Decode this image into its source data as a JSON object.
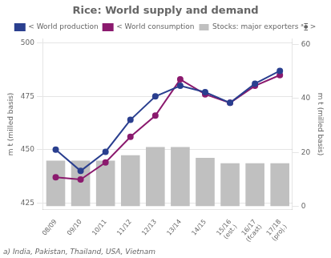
{
  "chart_data": {
    "type": "bar",
    "title": "Rice: World supply and demand",
    "annotations": [
      "a) India, Pakistan, Thailand, USA, Vietnam"
    ],
    "categories": [
      "08/09",
      "09/10",
      "10/11",
      "11/12",
      "12/13",
      "13/14",
      "14/15",
      "15/16\n(est.)",
      "16/17\n(fcast)",
      "17/18\n(proj.)"
    ],
    "series": [
      {
        "name": "Stocks: major exporters ᵃ⧳ >",
        "type": "bar",
        "axis": "y2",
        "color": "#c0c0c0",
        "values": [
          17,
          17,
          17,
          19,
          22,
          22,
          18,
          16,
          16,
          16
        ]
      },
      {
        "name": "< World production",
        "type": "line",
        "marker": "circle",
        "color": "#2a3f8f",
        "values": [
          450,
          440,
          449,
          464,
          475,
          480,
          477,
          472,
          481,
          487
        ]
      },
      {
        "name": "< World consumption",
        "type": "line",
        "marker": "circle",
        "color": "#8b1a6e",
        "values": [
          437,
          436,
          444,
          456,
          466,
          483,
          476,
          472,
          480,
          485
        ]
      }
    ],
    "ylabel": "m t (milled basis)",
    "y2label": "m t (milled basis)",
    "ylim": [
      422,
      502
    ],
    "yticks": [
      425,
      450,
      475,
      500
    ],
    "y2lim": [
      -1,
      62
    ],
    "y2ticks": [
      0,
      20,
      40,
      60
    ],
    "grid": true,
    "legend": "top"
  }
}
